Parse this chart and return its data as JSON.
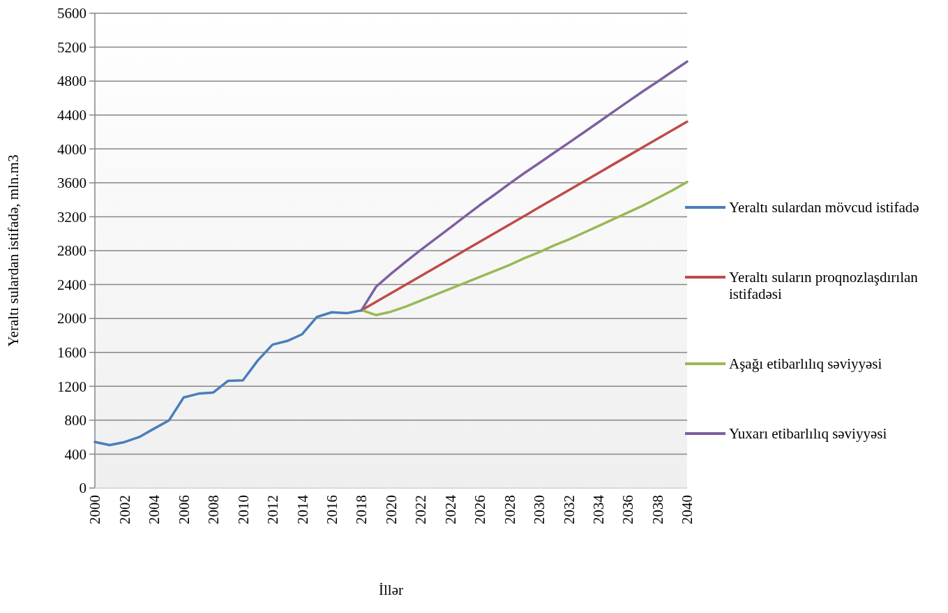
{
  "chart_data": {
    "type": "line",
    "xlabel": "İllər",
    "ylabel": "Yeraltı sulardan istifadə, mln.m3",
    "xlim": [
      2000,
      2040
    ],
    "xticks": [
      2000,
      2002,
      2004,
      2006,
      2008,
      2010,
      2012,
      2014,
      2016,
      2018,
      2020,
      2022,
      2024,
      2026,
      2028,
      2030,
      2032,
      2034,
      2036,
      2038,
      2040
    ],
    "ylim": [
      0,
      5600
    ],
    "yticks": [
      0,
      400,
      800,
      1200,
      1600,
      2000,
      2400,
      2800,
      3200,
      3600,
      4000,
      4400,
      4800,
      5200,
      5600
    ],
    "grid": "y",
    "legend": "right",
    "marker": "none",
    "line_style": "solid",
    "series": [
      {
        "name": "Yeraltı sulardan mövcud istifadə",
        "color": "#4a7ebb",
        "x": [
          2000,
          2001,
          2002,
          2003,
          2004,
          2005,
          2006,
          2007,
          2008,
          2009,
          2010,
          2011,
          2012,
          2013,
          2014,
          2015,
          2016,
          2017,
          2018
        ],
        "values": [
          544,
          506,
          542,
          602,
          701,
          797,
          1069,
          1113,
          1127,
          1265,
          1270,
          1504,
          1691,
          1735,
          1814,
          2018,
          2073,
          2062,
          2095
        ]
      },
      {
        "name": "Yeraltı suların proqnozlaşdırılan istifadəsi",
        "color": "#be4b48",
        "x": [
          2018,
          2019,
          2020,
          2021,
          2022,
          2023,
          2024,
          2025,
          2026,
          2027,
          2028,
          2029,
          2030,
          2031,
          2032,
          2033,
          2034,
          2035,
          2036,
          2037,
          2038,
          2039,
          2040
        ],
        "values": [
          2095,
          2196,
          2297,
          2399,
          2500,
          2601,
          2702,
          2804,
          2905,
          3006,
          3107,
          3208,
          3310,
          3411,
          3512,
          3613,
          3714,
          3816,
          3917,
          4018,
          4119,
          4220,
          4321
        ]
      },
      {
        "name": "Aşağı etibarlılıq səviyyəsi",
        "color": "#98b954",
        "x": [
          2018,
          2019,
          2020,
          2021,
          2022,
          2023,
          2024,
          2025,
          2026,
          2027,
          2028,
          2029,
          2030,
          2031,
          2032,
          2033,
          2034,
          2035,
          2036,
          2037,
          2038,
          2039,
          2040
        ],
        "values": [
          2100,
          2040,
          2080,
          2140,
          2210,
          2280,
          2350,
          2420,
          2490,
          2560,
          2630,
          2710,
          2780,
          2860,
          2930,
          3010,
          3090,
          3170,
          3250,
          3330,
          3420,
          3510,
          3610
        ]
      },
      {
        "name": "Yuxarı etibarlılıq səviyyəsi",
        "color": "#7d60a0",
        "x": [
          2018,
          2019,
          2020,
          2021,
          2022,
          2023,
          2024,
          2025,
          2026,
          2027,
          2028,
          2029,
          2030,
          2031,
          2032,
          2033,
          2034,
          2035,
          2036,
          2037,
          2038,
          2039,
          2040
        ],
        "values": [
          2095,
          2376,
          2527,
          2670,
          2807,
          2939,
          3071,
          3205,
          3337,
          3461,
          3590,
          3714,
          3832,
          3953,
          4071,
          4192,
          4313,
          4436,
          4557,
          4678,
          4793,
          4912,
          5030
        ]
      }
    ]
  }
}
